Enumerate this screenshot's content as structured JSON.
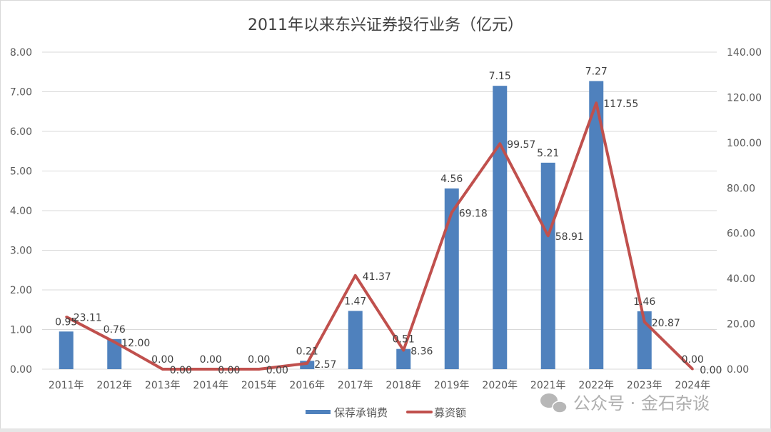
{
  "chart_data": {
    "type": "bar+line",
    "title": "2011年以来东兴证券投行业务（亿元）",
    "categories": [
      "2011年",
      "2012年",
      "2013年",
      "2014年",
      "2015年",
      "2016年",
      "2017年",
      "2018年",
      "2019年",
      "2020年",
      "2021年",
      "2022年",
      "2023年",
      "2024年"
    ],
    "series": [
      {
        "name": "保荐承销费",
        "type": "bar",
        "axis": "left",
        "color": "#4f81bd",
        "values": [
          0.95,
          0.76,
          0.0,
          0.0,
          0.0,
          0.21,
          1.47,
          0.51,
          4.56,
          7.15,
          5.21,
          7.27,
          1.46,
          0.0
        ],
        "labels": [
          "0.95",
          "0.76",
          "0.00",
          "0.00",
          "0.00",
          "0.21",
          "1.47",
          "0.51",
          "4.56",
          "7.15",
          "5.21",
          "7.27",
          "1.46",
          "0.00"
        ]
      },
      {
        "name": "募资额",
        "type": "line",
        "axis": "right",
        "color": "#c0504d",
        "values": [
          23.11,
          12.0,
          0.0,
          0.0,
          0.0,
          2.57,
          41.37,
          8.36,
          69.18,
          99.57,
          58.91,
          117.55,
          20.87,
          0.0
        ],
        "labels": [
          "23.11",
          "12.00",
          "0.00",
          "0.00",
          "0.00",
          "2.57",
          "41.37",
          "8.36",
          "69.18",
          "99.57",
          "58.91",
          "117.55",
          "20.87",
          "0.00"
        ]
      }
    ],
    "y_left": {
      "range": [
        0,
        8
      ],
      "ticks": [
        "0.00",
        "1.00",
        "2.00",
        "3.00",
        "4.00",
        "5.00",
        "6.00",
        "7.00",
        "8.00"
      ]
    },
    "y_right": {
      "range": [
        0,
        140
      ],
      "ticks": [
        "0.00",
        "20.00",
        "40.00",
        "60.00",
        "80.00",
        "100.00",
        "120.00",
        "140.00"
      ]
    },
    "grid": true,
    "legend": "bottom"
  },
  "watermark": "公众号 · 金石杂谈"
}
